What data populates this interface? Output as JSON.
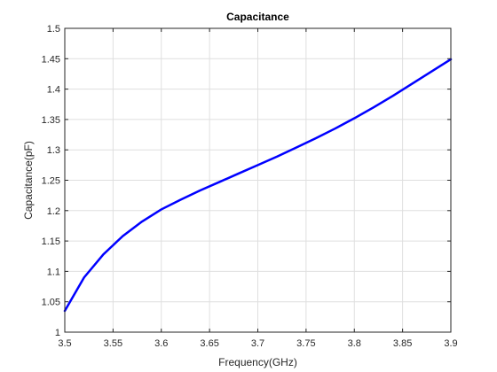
{
  "chart_data": {
    "type": "line",
    "title": "Capacitance",
    "xlabel": "Frequency(GHz)",
    "ylabel": "Capacitance(pF)",
    "xlim": [
      3.5,
      3.9
    ],
    "ylim": [
      1,
      1.5
    ],
    "xticks": [
      3.5,
      3.55,
      3.6,
      3.65,
      3.7,
      3.75,
      3.8,
      3.85,
      3.9
    ],
    "xtick_labels": [
      "3.5",
      "3.55",
      "3.6",
      "3.65",
      "3.7",
      "3.75",
      "3.8",
      "3.85",
      "3.9"
    ],
    "yticks": [
      1,
      1.05,
      1.1,
      1.15,
      1.2,
      1.25,
      1.3,
      1.35,
      1.4,
      1.45,
      1.5
    ],
    "ytick_labels": [
      "1",
      "1.05",
      "1.1",
      "1.15",
      "1.2",
      "1.25",
      "1.3",
      "1.35",
      "1.4",
      "1.45",
      "1.5"
    ],
    "grid": true,
    "series": [
      {
        "color": "#0000ff",
        "x": [
          3.5,
          3.52,
          3.54,
          3.56,
          3.58,
          3.6,
          3.62,
          3.64,
          3.66,
          3.68,
          3.7,
          3.72,
          3.74,
          3.76,
          3.78,
          3.8,
          3.82,
          3.84,
          3.86,
          3.88,
          3.9
        ],
        "y": [
          1.035,
          1.09,
          1.128,
          1.158,
          1.182,
          1.202,
          1.218,
          1.233,
          1.247,
          1.261,
          1.275,
          1.289,
          1.304,
          1.319,
          1.335,
          1.352,
          1.37,
          1.389,
          1.409,
          1.429,
          1.449
        ]
      }
    ]
  }
}
